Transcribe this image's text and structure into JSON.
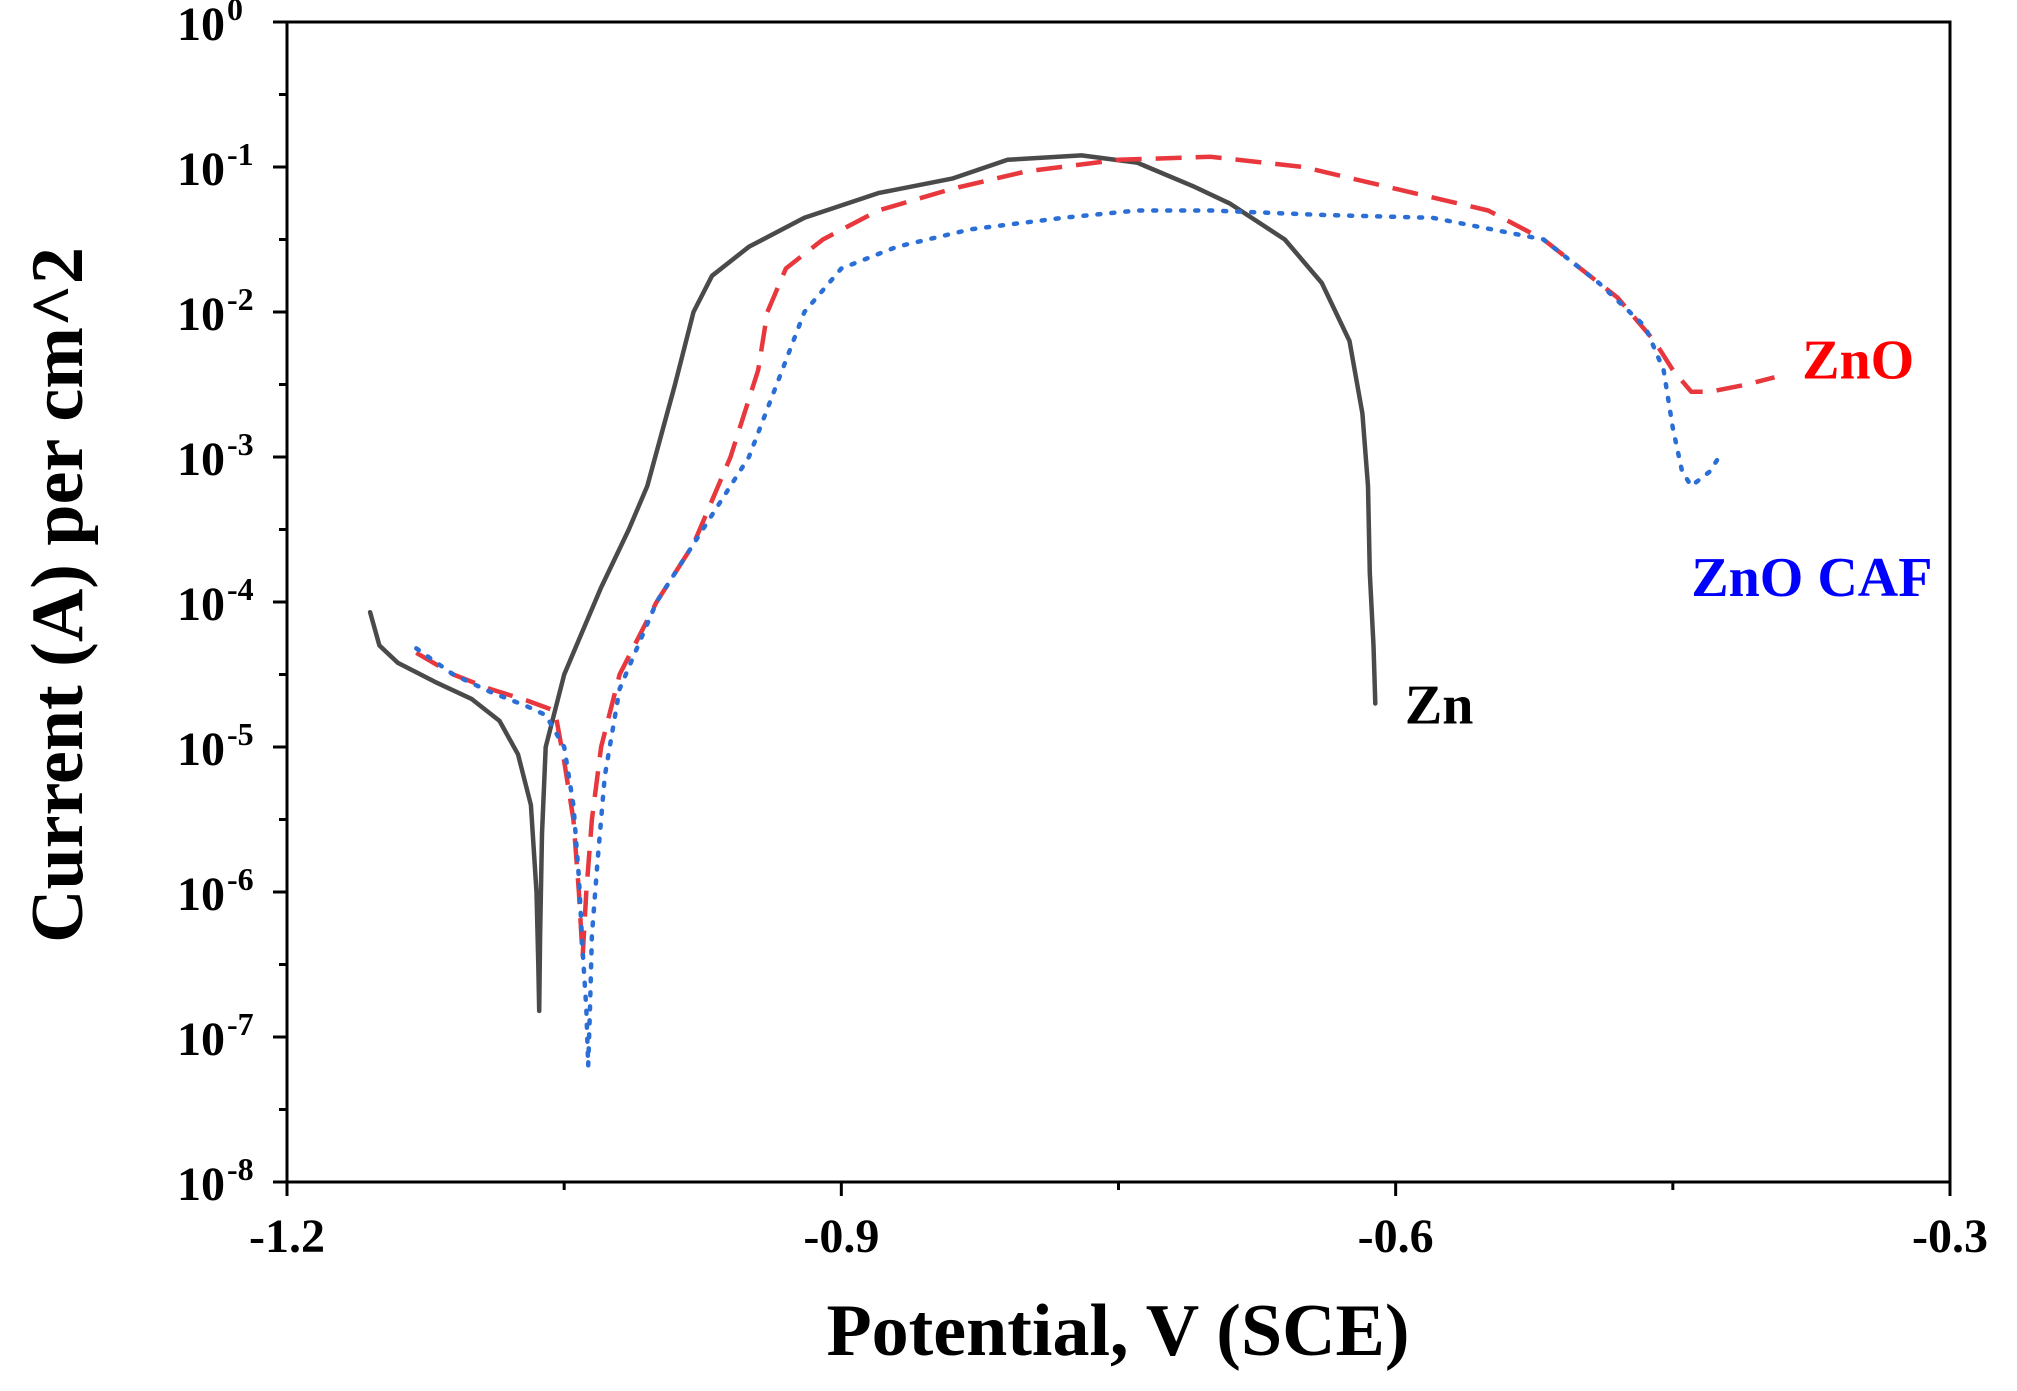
{
  "chart_data": {
    "type": "line",
    "title": "",
    "xlabel": "Potential, V (SCE)",
    "ylabel": "Current (A) per cm^2",
    "x_scale": "linear",
    "y_scale": "log",
    "xlim": [
      -1.2,
      -0.3
    ],
    "ylim": [
      1e-08,
      1
    ],
    "x_ticks": [
      {
        "value": -1.2,
        "label": "-1.2"
      },
      {
        "value": -0.9,
        "label": "-0.9"
      },
      {
        "value": -0.6,
        "label": "-0.6"
      },
      {
        "value": -0.3,
        "label": "-0.3"
      }
    ],
    "x_minor_ticks": [
      -1.05,
      -0.75,
      -0.45
    ],
    "y_ticks": [
      {
        "exp": 0,
        "base": "10",
        "sup": "0"
      },
      {
        "exp": -1,
        "base": "10",
        "sup": "-1"
      },
      {
        "exp": -2,
        "base": "10",
        "sup": "-2"
      },
      {
        "exp": -3,
        "base": "10",
        "sup": "-3"
      },
      {
        "exp": -4,
        "base": "10",
        "sup": "-4"
      },
      {
        "exp": -5,
        "base": "10",
        "sup": "-5"
      },
      {
        "exp": -6,
        "base": "10",
        "sup": "-6"
      },
      {
        "exp": -7,
        "base": "10",
        "sup": "-7"
      },
      {
        "exp": -8,
        "base": "10",
        "sup": "-8"
      }
    ],
    "series": [
      {
        "name": "Zn",
        "color": "#4a4a4a",
        "style": "solid",
        "label_at": [
          -0.595,
          -4.7
        ],
        "points": [
          [
            -1.155,
            -4.07
          ],
          [
            -1.15,
            -4.3
          ],
          [
            -1.14,
            -4.42
          ],
          [
            -1.12,
            -4.55
          ],
          [
            -1.1,
            -4.67
          ],
          [
            -1.085,
            -4.82
          ],
          [
            -1.075,
            -5.05
          ],
          [
            -1.068,
            -5.4
          ],
          [
            -1.065,
            -6.0
          ],
          [
            -1.064,
            -6.5
          ],
          [
            -1.0635,
            -6.82
          ],
          [
            -1.063,
            -6.3
          ],
          [
            -1.062,
            -5.6
          ],
          [
            -1.06,
            -5.0
          ],
          [
            -1.05,
            -4.5
          ],
          [
            -1.04,
            -4.2
          ],
          [
            -1.03,
            -3.9
          ],
          [
            -1.015,
            -3.5
          ],
          [
            -1.005,
            -3.2
          ],
          [
            -0.99,
            -2.5
          ],
          [
            -0.98,
            -2.0
          ],
          [
            -0.97,
            -1.75
          ],
          [
            -0.95,
            -1.55
          ],
          [
            -0.92,
            -1.35
          ],
          [
            -0.88,
            -1.18
          ],
          [
            -0.84,
            -1.08
          ],
          [
            -0.81,
            -0.95
          ],
          [
            -0.77,
            -0.92
          ],
          [
            -0.74,
            -0.97
          ],
          [
            -0.71,
            -1.13
          ],
          [
            -0.69,
            -1.25
          ],
          [
            -0.66,
            -1.5
          ],
          [
            -0.64,
            -1.8
          ],
          [
            -0.625,
            -2.2
          ],
          [
            -0.618,
            -2.7
          ],
          [
            -0.615,
            -3.2
          ],
          [
            -0.614,
            -3.8
          ],
          [
            -0.612,
            -4.3
          ],
          [
            -0.611,
            -4.7
          ]
        ]
      },
      {
        "name": "ZnO",
        "color": "#e8383d",
        "style": "dashed",
        "label_at": [
          -0.38,
          -2.32
        ],
        "points": [
          [
            -1.13,
            -4.35
          ],
          [
            -1.11,
            -4.5
          ],
          [
            -1.09,
            -4.6
          ],
          [
            -1.07,
            -4.68
          ],
          [
            -1.055,
            -4.75
          ],
          [
            -1.05,
            -5.1
          ],
          [
            -1.045,
            -5.5
          ],
          [
            -1.042,
            -6.0
          ],
          [
            -1.04,
            -6.45
          ],
          [
            -1.038,
            -6.0
          ],
          [
            -1.035,
            -5.5
          ],
          [
            -1.03,
            -5.0
          ],
          [
            -1.02,
            -4.5
          ],
          [
            -1.0,
            -4.0
          ],
          [
            -0.98,
            -3.6
          ],
          [
            -0.96,
            -3.0
          ],
          [
            -0.945,
            -2.4
          ],
          [
            -0.94,
            -2.0
          ],
          [
            -0.93,
            -1.7
          ],
          [
            -0.91,
            -1.5
          ],
          [
            -0.88,
            -1.3
          ],
          [
            -0.84,
            -1.15
          ],
          [
            -0.8,
            -1.03
          ],
          [
            -0.75,
            -0.95
          ],
          [
            -0.7,
            -0.93
          ],
          [
            -0.65,
            -1.0
          ],
          [
            -0.6,
            -1.15
          ],
          [
            -0.55,
            -1.3
          ],
          [
            -0.52,
            -1.5
          ],
          [
            -0.48,
            -1.9
          ],
          [
            -0.46,
            -2.2
          ],
          [
            -0.45,
            -2.4
          ],
          [
            -0.44,
            -2.55
          ],
          [
            -0.43,
            -2.55
          ],
          [
            -0.41,
            -2.5
          ],
          [
            -0.395,
            -2.45
          ]
        ]
      },
      {
        "name": "ZnO CAF",
        "color": "#2b6fd6",
        "style": "dotted",
        "label_at": [
          -0.44,
          -3.82
        ],
        "points": [
          [
            -1.13,
            -4.32
          ],
          [
            -1.11,
            -4.5
          ],
          [
            -1.09,
            -4.62
          ],
          [
            -1.07,
            -4.72
          ],
          [
            -1.06,
            -4.78
          ],
          [
            -1.05,
            -5.0
          ],
          [
            -1.045,
            -5.4
          ],
          [
            -1.042,
            -5.9
          ],
          [
            -1.04,
            -6.4
          ],
          [
            -1.038,
            -6.8
          ],
          [
            -1.037,
            -7.2
          ],
          [
            -1.036,
            -6.8
          ],
          [
            -1.035,
            -6.3
          ],
          [
            -1.032,
            -5.8
          ],
          [
            -1.028,
            -5.2
          ],
          [
            -1.02,
            -4.6
          ],
          [
            -1.0,
            -4.0
          ],
          [
            -0.985,
            -3.7
          ],
          [
            -0.97,
            -3.4
          ],
          [
            -0.95,
            -3.0
          ],
          [
            -0.935,
            -2.5
          ],
          [
            -0.92,
            -2.0
          ],
          [
            -0.9,
            -1.7
          ],
          [
            -0.87,
            -1.55
          ],
          [
            -0.83,
            -1.43
          ],
          [
            -0.78,
            -1.35
          ],
          [
            -0.74,
            -1.3
          ],
          [
            -0.7,
            -1.3
          ],
          [
            -0.64,
            -1.33
          ],
          [
            -0.58,
            -1.35
          ],
          [
            -0.52,
            -1.5
          ],
          [
            -0.49,
            -1.8
          ],
          [
            -0.465,
            -2.1
          ],
          [
            -0.455,
            -2.4
          ],
          [
            -0.45,
            -2.8
          ],
          [
            -0.445,
            -3.1
          ],
          [
            -0.44,
            -3.2
          ],
          [
            -0.43,
            -3.1
          ],
          [
            -0.425,
            -3.0
          ]
        ]
      }
    ]
  }
}
